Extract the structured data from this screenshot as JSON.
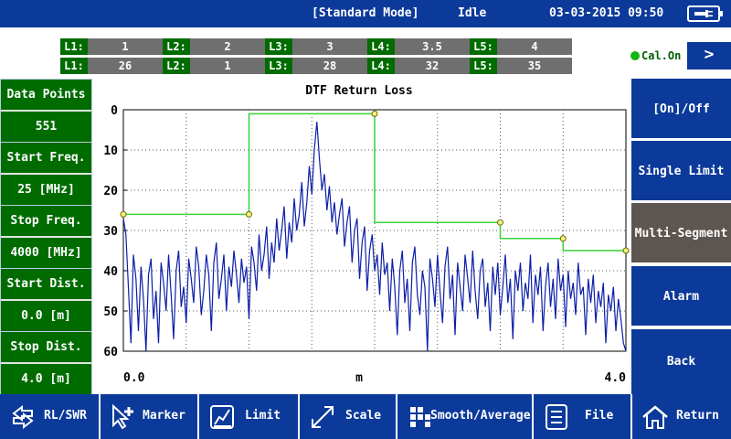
{
  "status": {
    "mode": "[Standard Mode]",
    "state": "Idle",
    "datetime": "03-03-2015 09:50",
    "battery_icon": "battery-plug-icon"
  },
  "limits": {
    "row1": [
      {
        "name": "L1:",
        "value": "1"
      },
      {
        "name": "L2:",
        "value": "2"
      },
      {
        "name": "L3:",
        "value": "3"
      },
      {
        "name": "L4:",
        "value": "3.5"
      },
      {
        "name": "L5:",
        "value": "4"
      }
    ],
    "row2": [
      {
        "name": "L1:",
        "value": "26"
      },
      {
        "name": "L2:",
        "value": "1"
      },
      {
        "name": "L3:",
        "value": "28"
      },
      {
        "name": "L4:",
        "value": "32"
      },
      {
        "name": "L5:",
        "value": "35"
      }
    ]
  },
  "calibration": {
    "label": "Cal.On",
    "color": "#13b313"
  },
  "nav_next": ">",
  "params": [
    {
      "label": "Data Points",
      "value": "551"
    },
    {
      "label": "Start Freq.",
      "value": "25 [MHz]"
    },
    {
      "label": "Stop Freq.",
      "value": "4000 [MHz]"
    },
    {
      "label": "Start Dist.",
      "value": "0.0 [m]"
    },
    {
      "label": "Stop Dist.",
      "value": "4.0 [m]"
    }
  ],
  "softkeys": [
    {
      "label": "[On]/Off"
    },
    {
      "label": "Single Limit"
    },
    {
      "label": "Multi-Segment"
    },
    {
      "label": "Alarm"
    },
    {
      "label": "Back"
    }
  ],
  "toolbar": [
    {
      "label": "RL/SWR",
      "icon": "swap-arrows-icon"
    },
    {
      "label": "Marker",
      "icon": "marker-icon"
    },
    {
      "label": "Limit",
      "icon": "limit-icon"
    },
    {
      "label": "Scale",
      "icon": "scale-icon"
    },
    {
      "label": "Smooth/Average",
      "icon": "smooth-icon"
    },
    {
      "label": "File",
      "icon": "file-icon"
    },
    {
      "label": "Return",
      "icon": "home-icon"
    }
  ],
  "chart_data": {
    "type": "line",
    "title": "DTF Return Loss",
    "xlabel": "m",
    "ylabel": "",
    "xlim": [
      0.0,
      4.0
    ],
    "ylim": [
      0,
      60
    ],
    "y_inverted": true,
    "x_tick_labels": [
      "0.0",
      "4.0"
    ],
    "y_tick_labels": [
      "0",
      "10",
      "20",
      "30",
      "40",
      "50",
      "60"
    ],
    "grid": true,
    "series": [
      {
        "color": "#0b1ea8",
        "x": [
          0.0,
          0.02,
          0.04,
          0.06,
          0.08,
          0.1,
          0.12,
          0.14,
          0.16,
          0.18,
          0.2,
          0.22,
          0.24,
          0.26,
          0.28,
          0.3,
          0.32,
          0.34,
          0.36,
          0.38,
          0.4,
          0.42,
          0.44,
          0.46,
          0.48,
          0.5,
          0.52,
          0.54,
          0.56,
          0.58,
          0.6,
          0.62,
          0.64,
          0.66,
          0.68,
          0.7,
          0.72,
          0.74,
          0.76,
          0.78,
          0.8,
          0.82,
          0.84,
          0.86,
          0.88,
          0.9,
          0.92,
          0.94,
          0.96,
          0.98,
          1.0,
          1.02,
          1.04,
          1.06,
          1.08,
          1.1,
          1.12,
          1.14,
          1.16,
          1.18,
          1.2,
          1.22,
          1.24,
          1.26,
          1.28,
          1.3,
          1.32,
          1.34,
          1.36,
          1.38,
          1.4,
          1.42,
          1.44,
          1.46,
          1.48,
          1.5,
          1.52,
          1.54,
          1.56,
          1.58,
          1.6,
          1.62,
          1.64,
          1.66,
          1.68,
          1.7,
          1.72,
          1.74,
          1.76,
          1.78,
          1.8,
          1.82,
          1.84,
          1.86,
          1.88,
          1.9,
          1.92,
          1.94,
          1.96,
          1.98,
          2.0,
          2.02,
          2.04,
          2.06,
          2.08,
          2.1,
          2.12,
          2.14,
          2.16,
          2.18,
          2.2,
          2.22,
          2.24,
          2.26,
          2.28,
          2.3,
          2.32,
          2.34,
          2.36,
          2.38,
          2.4,
          2.42,
          2.44,
          2.46,
          2.48,
          2.5,
          2.52,
          2.54,
          2.56,
          2.58,
          2.6,
          2.62,
          2.64,
          2.66,
          2.68,
          2.7,
          2.72,
          2.74,
          2.76,
          2.78,
          2.8,
          2.82,
          2.84,
          2.86,
          2.88,
          2.9,
          2.92,
          2.94,
          2.96,
          2.98,
          3.0,
          3.02,
          3.04,
          3.06,
          3.08,
          3.1,
          3.12,
          3.14,
          3.16,
          3.18,
          3.2,
          3.22,
          3.24,
          3.26,
          3.28,
          3.3,
          3.32,
          3.34,
          3.36,
          3.38,
          3.4,
          3.42,
          3.44,
          3.46,
          3.48,
          3.5,
          3.52,
          3.54,
          3.56,
          3.58,
          3.6,
          3.62,
          3.64,
          3.66,
          3.68,
          3.7,
          3.72,
          3.74,
          3.76,
          3.78,
          3.8,
          3.82,
          3.84,
          3.86,
          3.88,
          3.9,
          3.92,
          3.94,
          3.96,
          3.98,
          4.0
        ],
        "y": [
          27,
          31,
          44,
          58,
          36,
          42,
          55,
          39,
          47,
          60,
          41,
          37,
          52,
          45,
          58,
          38,
          43,
          50,
          36,
          46,
          57,
          40,
          35,
          49,
          44,
          53,
          37,
          42,
          48,
          34,
          39,
          51,
          45,
          36,
          41,
          55,
          38,
          33,
          47,
          42,
          36,
          50,
          39,
          44,
          35,
          41,
          48,
          37,
          43,
          39,
          52,
          34,
          38,
          45,
          31,
          40,
          36,
          29,
          42,
          33,
          38,
          27,
          35,
          30,
          24,
          37,
          28,
          33,
          22,
          30,
          26,
          18,
          29,
          23,
          14,
          21,
          10,
          3,
          12,
          20,
          16,
          25,
          19,
          28,
          23,
          31,
          26,
          22,
          34,
          28,
          24,
          38,
          30,
          27,
          42,
          33,
          29,
          45,
          35,
          31,
          40,
          36,
          46,
          33,
          41,
          38,
          50,
          37,
          44,
          56,
          40,
          35,
          48,
          42,
          55,
          38,
          34,
          46,
          51,
          40,
          44,
          60,
          37,
          42,
          49,
          36,
          45,
          53,
          39,
          34,
          47,
          41,
          56,
          38,
          44,
          50,
          36,
          42,
          48,
          35,
          45,
          52,
          40,
          37,
          49,
          43,
          55,
          39,
          46,
          38,
          51,
          44,
          36,
          48,
          42,
          57,
          40,
          45,
          38,
          50,
          43,
          47,
          36,
          53,
          41,
          46,
          39,
          55,
          44,
          38,
          49,
          42,
          52,
          37,
          45,
          41,
          54,
          40,
          47,
          43,
          51,
          38,
          46,
          44,
          56,
          42,
          48,
          41,
          53,
          45,
          49,
          43,
          58,
          46,
          50,
          44,
          55,
          47,
          52,
          58,
          60
        ]
      }
    ],
    "limit_line": {
      "color": "#35d435",
      "x": [
        0.0,
        1.0,
        1.0,
        2.0,
        2.0,
        3.0,
        3.0,
        3.5,
        3.5,
        4.0
      ],
      "y": [
        26,
        26,
        1,
        1,
        28,
        28,
        32,
        32,
        35,
        35
      ],
      "marker_x": [
        0.0,
        1.0,
        2.0,
        3.0,
        3.5,
        4.0
      ],
      "marker_y": [
        26,
        26,
        1,
        28,
        32,
        35
      ]
    }
  }
}
